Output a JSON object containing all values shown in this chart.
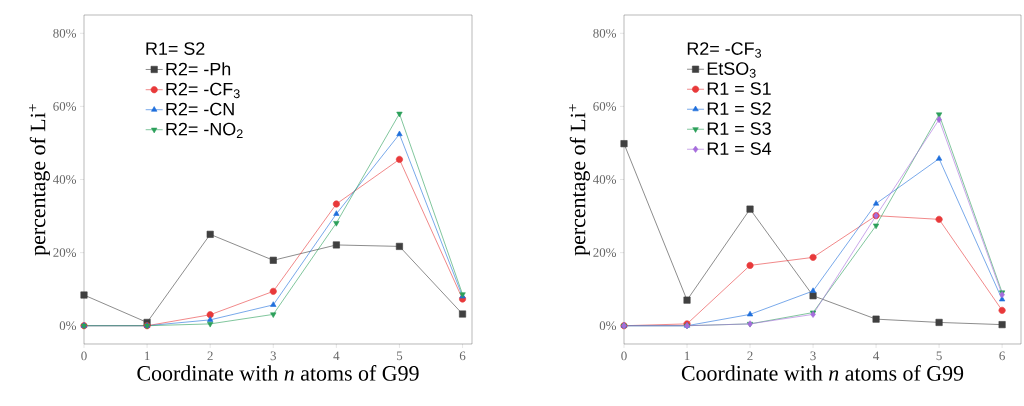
{
  "chart_data": [
    {
      "type": "line",
      "xlabel": "Coordinate with *n* atoms of G99",
      "ylabel": "percentage of Li$^{+}$",
      "legend_title": "R1= S2",
      "legend": "top left",
      "line_style": "solid",
      "x": [
        0,
        1,
        2,
        3,
        4,
        5,
        6
      ],
      "xlim": [
        0,
        6.15
      ],
      "ylim": [
        -5,
        85
      ],
      "xticks": [
        0,
        1,
        2,
        3,
        4,
        5,
        6
      ],
      "yticks": [
        {
          "value": 0,
          "label": "0%"
        },
        {
          "value": 20,
          "label": "20%"
        },
        {
          "value": 40,
          "label": "40%"
        },
        {
          "value": 60,
          "label": "60%"
        },
        {
          "value": 80,
          "label": "80%"
        }
      ],
      "series": [
        {
          "name": "R2= -Ph",
          "color": "#404040",
          "marker": "square",
          "values": [
            8.4,
            0.9,
            25,
            17.9,
            22.1,
            21.7,
            3.2
          ]
        },
        {
          "name": "R2= -CF$_{3}$",
          "color": "#e8393a",
          "marker": "circle",
          "values": [
            0,
            0,
            3.0,
            9.4,
            33.3,
            45.5,
            7.3
          ]
        },
        {
          "name": "R2= -CN",
          "color": "#1f6fdc",
          "marker": "triangle",
          "values": [
            0,
            0,
            1.6,
            5.7,
            30.6,
            52.4,
            8.0
          ]
        },
        {
          "name": "R2= -NO$_{2}$",
          "color": "#2ca05a",
          "marker": "triangle-down",
          "values": [
            0,
            0,
            0.5,
            3.1,
            28.1,
            58.0,
            8.6
          ]
        }
      ]
    },
    {
      "type": "line",
      "xlabel": "Coordinate with *n* atoms of G99",
      "ylabel": "percentage of Li$^{+}$",
      "legend_title": "R2= -CF$_{3}$",
      "legend": "top left",
      "line_style": "solid",
      "x": [
        0,
        1,
        2,
        3,
        4,
        5,
        6
      ],
      "xlim": [
        0,
        6.3
      ],
      "ylim": [
        -5,
        85
      ],
      "xticks": [
        0,
        1,
        2,
        3,
        4,
        5,
        6
      ],
      "yticks": [
        {
          "value": 0,
          "label": "0%"
        },
        {
          "value": 20,
          "label": "20%"
        },
        {
          "value": 40,
          "label": "40%"
        },
        {
          "value": 60,
          "label": "60%"
        },
        {
          "value": 80,
          "label": "80%"
        }
      ],
      "series": [
        {
          "name": "EtSO$_{3}$",
          "color": "#404040",
          "marker": "square",
          "values": [
            49.8,
            7.0,
            31.9,
            8.2,
            1.8,
            0.9,
            0.3
          ]
        },
        {
          "name": "R1 = S1",
          "color": "#e8393a",
          "marker": "circle",
          "values": [
            0,
            0.5,
            16.5,
            18.7,
            30.1,
            29.1,
            4.2
          ]
        },
        {
          "name": "R1 = S2",
          "color": "#1f6fdc",
          "marker": "triangle",
          "values": [
            0,
            0,
            3.1,
            9.5,
            33.4,
            45.7,
            7.2
          ]
        },
        {
          "name": "R1 = S3",
          "color": "#2ca05a",
          "marker": "triangle-down",
          "values": [
            0,
            0,
            0.5,
            3.6,
            27.4,
            57.8,
            9.1
          ]
        },
        {
          "name": "R1 = S4",
          "color": "#a66ddc",
          "marker": "diamond",
          "values": [
            0,
            0,
            0.5,
            3.1,
            30.1,
            56.4,
            8.5
          ]
        }
      ]
    }
  ]
}
